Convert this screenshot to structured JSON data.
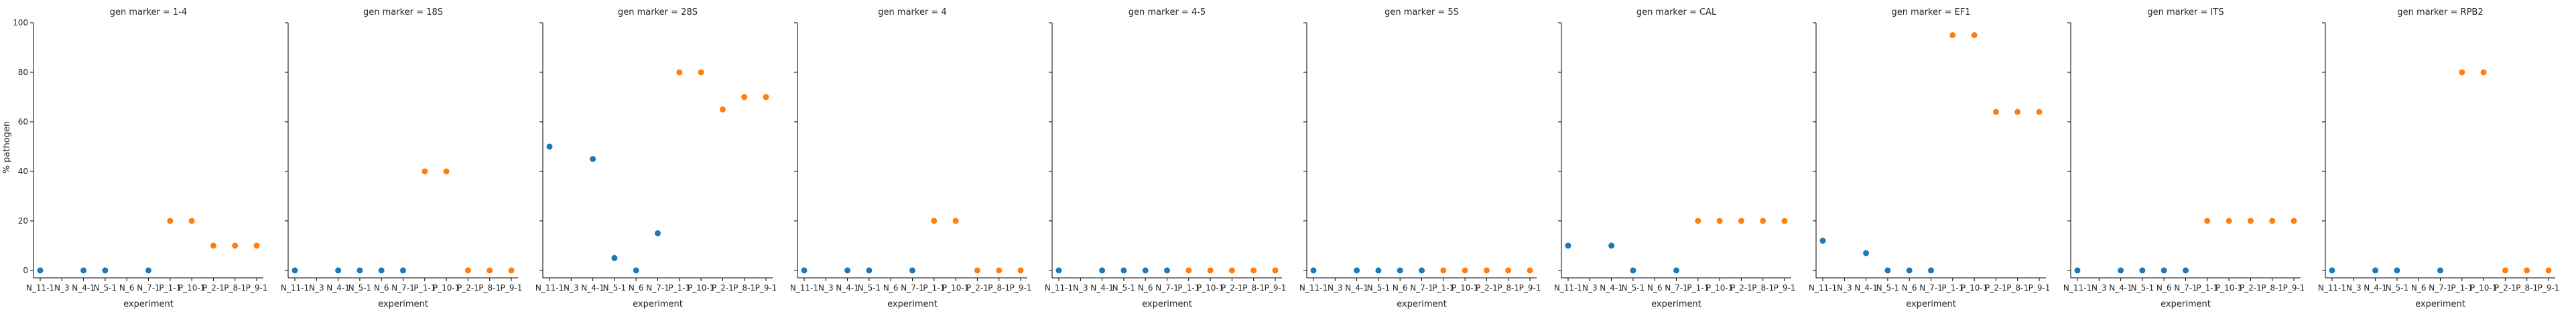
{
  "chart_data": {
    "type": "scatter",
    "facet_prefix": "gen marker = ",
    "xlabel": "experiment",
    "ylabel": "% pathogen",
    "ylim": [
      -3,
      100
    ],
    "yticks": [
      0,
      20,
      40,
      60,
      80,
      100
    ],
    "x_categories": [
      "N_11-1",
      "N_3",
      "N_4-1",
      "N_5-1",
      "N_6",
      "N_7-1",
      "P_1-1",
      "P_10-1",
      "P_2-1",
      "P_8-1",
      "P_9-1"
    ],
    "x_tick_labels": [
      "N_11-1",
      "N_3",
      "N_4-1",
      "N_5-1",
      "N_6",
      "N_7-1",
      "P_1-1",
      "P_10-1",
      "P_2-1",
      "P_8-1",
      "P_9-1"
    ],
    "colors": {
      "N": "#1f77b4",
      "P": "#ff7f0e"
    },
    "panels": [
      {
        "marker": "1-4",
        "values": [
          0,
          null,
          0,
          0,
          null,
          0,
          20,
          20,
          10,
          10,
          10
        ]
      },
      {
        "marker": "18S",
        "values": [
          0,
          null,
          0,
          0,
          0,
          0,
          40,
          40,
          0,
          0,
          0
        ]
      },
      {
        "marker": "28S",
        "values": [
          50,
          null,
          45,
          5,
          0,
          15,
          80,
          80,
          65,
          70,
          70
        ]
      },
      {
        "marker": "4",
        "values": [
          0,
          null,
          0,
          0,
          null,
          0,
          20,
          20,
          0,
          0,
          0
        ]
      },
      {
        "marker": "4-5",
        "values": [
          0,
          null,
          0,
          0,
          0,
          0,
          0,
          0,
          0,
          0,
          0
        ]
      },
      {
        "marker": "5S",
        "values": [
          0,
          null,
          0,
          0,
          0,
          0,
          0,
          0,
          0,
          0,
          0
        ]
      },
      {
        "marker": "CAL",
        "values": [
          10,
          null,
          10,
          0,
          null,
          0,
          20,
          20,
          20,
          20,
          20
        ]
      },
      {
        "marker": "EF1",
        "values": [
          12,
          null,
          7,
          0,
          0,
          0,
          95,
          95,
          64,
          64,
          64
        ]
      },
      {
        "marker": "ITS",
        "values": [
          0,
          null,
          0,
          0,
          0,
          0,
          20,
          20,
          20,
          20,
          20
        ]
      },
      {
        "marker": "RPB2",
        "values": [
          0,
          null,
          0,
          0,
          null,
          0,
          80,
          80,
          0,
          0,
          0
        ]
      }
    ]
  }
}
